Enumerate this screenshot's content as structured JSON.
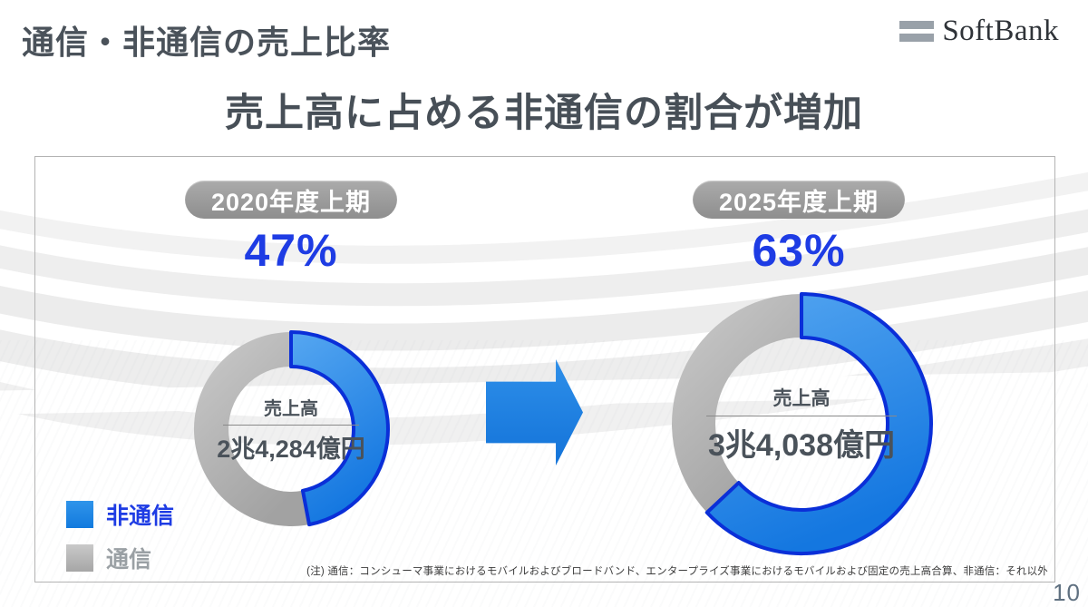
{
  "slide": {
    "title": "通信・非通信の売上比率",
    "subtitle": "売上高に占める非通信の割合が増加",
    "brand": "SoftBank",
    "page_number": "10",
    "footnote": "(注) 通信：コンシューマ事業におけるモバイルおよびブロードバンド、エンタープライズ事業におけるモバイルおよび固定の売上高合算、非通信：それ以外"
  },
  "legend": {
    "non_telecom_label": "非通信",
    "telecom_label": "通信"
  },
  "chart_data": {
    "type": "pie",
    "variant": "donut_comparison",
    "title": "売上高に占める非通信の割合が増加",
    "legend_entries": [
      "非通信",
      "通信"
    ],
    "series": [
      {
        "period": "2020年度上期",
        "percent_label": "47%",
        "non_telecom_pct": 47,
        "telecom_pct": 53,
        "center_title": "売上高",
        "center_value": "2兆4,284億円"
      },
      {
        "period": "2025年度上期",
        "percent_label": "63%",
        "non_telecom_pct": 63,
        "telecom_pct": 37,
        "center_title": "売上高",
        "center_value": "3兆4,038億円"
      }
    ],
    "colors": {
      "non_telecom_fill": "#1477e0",
      "non_telecom_fill_light": "#56a7f1",
      "non_telecom_stroke": "#0a2fd8",
      "telecom_fill": "#cbcbcb",
      "telecom_fill_dark": "#a2a2a2",
      "accent_text_blue": "#1e3ce4"
    }
  }
}
